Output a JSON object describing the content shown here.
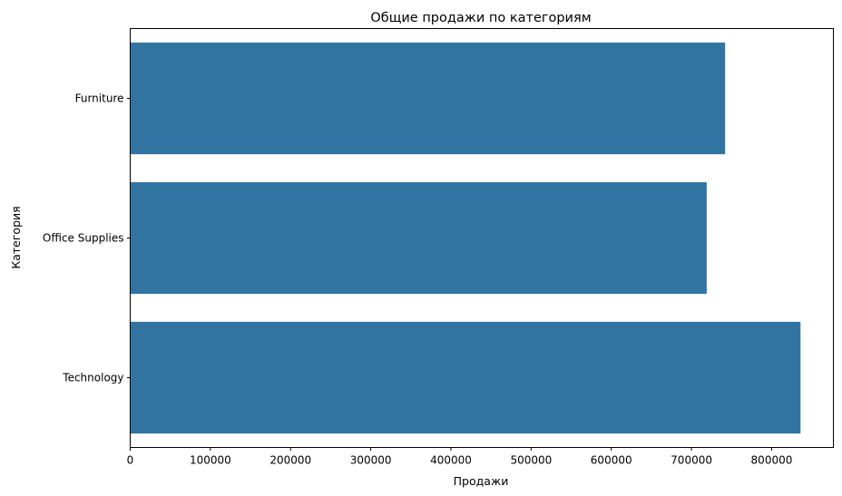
{
  "chart_data": {
    "type": "bar",
    "orientation": "horizontal",
    "title": "Общие продажи по категориям",
    "xlabel": "Продажи",
    "ylabel": "Категория",
    "categories": [
      "Furniture",
      "Office Supplies",
      "Technology"
    ],
    "values": [
      742000,
      719000,
      836000
    ],
    "xlim": [
      0,
      877000
    ],
    "xticks": [
      0,
      100000,
      200000,
      300000,
      400000,
      500000,
      600000,
      700000,
      800000
    ],
    "xtick_labels": [
      "0",
      "100000",
      "200000",
      "300000",
      "400000",
      "500000",
      "600000",
      "700000",
      "800000"
    ],
    "bar_color": "#3274a1",
    "grid": false,
    "legend": false
  }
}
